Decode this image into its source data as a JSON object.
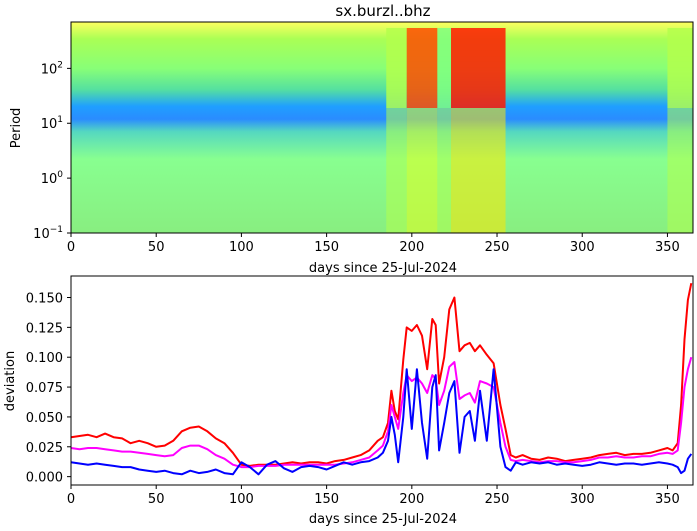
{
  "chart_data": [
    {
      "type": "heatmap",
      "title": "sx.burzl..bhz",
      "xlabel": "days since 25-Jul-2024",
      "ylabel": "Period",
      "xlim": [
        0,
        365
      ],
      "ylim": [
        0.1,
        700
      ],
      "yscale": "log",
      "colormap": "jet",
      "x_ticks": [
        "0",
        "50",
        "100",
        "150",
        "200",
        "250",
        "300",
        "350"
      ],
      "y_ticks": [
        "10^-1",
        "10^0",
        "10^1",
        "10^2"
      ],
      "bands": [
        {
          "x0": 0,
          "x1": 185,
          "value": 0.35
        },
        {
          "x0": 185,
          "x1": 197,
          "value": 0.55
        },
        {
          "x0": 197,
          "x1": 215,
          "value": 0.8
        },
        {
          "x0": 215,
          "x1": 223,
          "value": 0.5
        },
        {
          "x0": 223,
          "x1": 255,
          "value": 0.85
        },
        {
          "x0": 255,
          "x1": 350,
          "value": 0.35
        },
        {
          "x0": 350,
          "x1": 365,
          "value": 0.55
        }
      ]
    },
    {
      "type": "line",
      "xlabel": "days since 25-Jul-2024",
      "ylabel": "deviation",
      "xlim": [
        0,
        365
      ],
      "ylim": [
        -0.007,
        0.168
      ],
      "x_ticks": [
        "0",
        "50",
        "100",
        "150",
        "200",
        "250",
        "300",
        "350"
      ],
      "y_ticks": [
        "0.000",
        "0.025",
        "0.050",
        "0.075",
        "0.100",
        "0.125",
        "0.150"
      ],
      "series": [
        {
          "color": "#ff0000",
          "x": [
            0,
            5,
            10,
            15,
            20,
            25,
            30,
            35,
            40,
            45,
            50,
            55,
            60,
            65,
            70,
            75,
            80,
            85,
            90,
            95,
            100,
            105,
            110,
            115,
            120,
            125,
            130,
            135,
            140,
            145,
            150,
            155,
            160,
            165,
            170,
            175,
            180,
            183,
            186,
            188,
            190,
            192,
            195,
            197,
            200,
            203,
            206,
            209,
            212,
            214,
            216,
            219,
            222,
            225,
            228,
            231,
            234,
            237,
            240,
            244,
            248,
            252,
            255,
            258,
            261,
            265,
            270,
            275,
            280,
            285,
            290,
            295,
            300,
            305,
            310,
            315,
            320,
            325,
            330,
            335,
            340,
            345,
            350,
            353,
            356,
            358,
            360,
            362,
            364
          ],
          "values": [
            0.033,
            0.034,
            0.035,
            0.033,
            0.036,
            0.033,
            0.032,
            0.028,
            0.03,
            0.028,
            0.025,
            0.026,
            0.03,
            0.038,
            0.041,
            0.042,
            0.038,
            0.032,
            0.028,
            0.02,
            0.01,
            0.009,
            0.01,
            0.01,
            0.01,
            0.011,
            0.012,
            0.011,
            0.012,
            0.012,
            0.011,
            0.013,
            0.014,
            0.016,
            0.018,
            0.022,
            0.03,
            0.033,
            0.045,
            0.072,
            0.055,
            0.048,
            0.098,
            0.125,
            0.122,
            0.127,
            0.118,
            0.09,
            0.132,
            0.127,
            0.078,
            0.1,
            0.14,
            0.15,
            0.105,
            0.11,
            0.112,
            0.105,
            0.11,
            0.102,
            0.095,
            0.06,
            0.04,
            0.018,
            0.016,
            0.018,
            0.015,
            0.014,
            0.016,
            0.015,
            0.013,
            0.014,
            0.015,
            0.016,
            0.018,
            0.019,
            0.02,
            0.018,
            0.019,
            0.019,
            0.02,
            0.022,
            0.024,
            0.022,
            0.028,
            0.06,
            0.115,
            0.148,
            0.162
          ]
        },
        {
          "color": "#ff00ff",
          "x": [
            0,
            5,
            10,
            15,
            20,
            25,
            30,
            35,
            40,
            45,
            50,
            55,
            60,
            65,
            70,
            75,
            80,
            85,
            90,
            95,
            100,
            105,
            110,
            115,
            120,
            125,
            130,
            135,
            140,
            145,
            150,
            155,
            160,
            165,
            170,
            175,
            180,
            183,
            186,
            188,
            190,
            192,
            195,
            197,
            200,
            203,
            206,
            209,
            212,
            214,
            216,
            219,
            222,
            225,
            228,
            231,
            234,
            237,
            240,
            244,
            248,
            252,
            255,
            258,
            261,
            265,
            270,
            275,
            280,
            285,
            290,
            295,
            300,
            305,
            310,
            315,
            320,
            325,
            330,
            335,
            340,
            345,
            350,
            353,
            356,
            358,
            360,
            362,
            364
          ],
          "values": [
            0.024,
            0.023,
            0.024,
            0.024,
            0.023,
            0.022,
            0.021,
            0.021,
            0.02,
            0.019,
            0.018,
            0.017,
            0.018,
            0.024,
            0.026,
            0.026,
            0.023,
            0.018,
            0.015,
            0.01,
            0.008,
            0.008,
            0.009,
            0.009,
            0.009,
            0.01,
            0.01,
            0.01,
            0.01,
            0.01,
            0.01,
            0.01,
            0.011,
            0.012,
            0.014,
            0.016,
            0.022,
            0.026,
            0.038,
            0.06,
            0.05,
            0.04,
            0.07,
            0.085,
            0.08,
            0.083,
            0.078,
            0.07,
            0.085,
            0.082,
            0.06,
            0.072,
            0.092,
            0.096,
            0.065,
            0.068,
            0.07,
            0.062,
            0.08,
            0.078,
            0.075,
            0.045,
            0.025,
            0.014,
            0.013,
            0.014,
            0.013,
            0.012,
            0.013,
            0.013,
            0.012,
            0.012,
            0.013,
            0.014,
            0.016,
            0.016,
            0.017,
            0.016,
            0.016,
            0.017,
            0.017,
            0.019,
            0.02,
            0.019,
            0.022,
            0.045,
            0.075,
            0.09,
            0.1
          ]
        },
        {
          "color": "#0000ff",
          "x": [
            0,
            5,
            10,
            15,
            20,
            25,
            30,
            35,
            40,
            45,
            50,
            55,
            60,
            65,
            70,
            75,
            80,
            85,
            90,
            95,
            100,
            105,
            110,
            115,
            120,
            125,
            130,
            135,
            140,
            145,
            150,
            155,
            160,
            165,
            170,
            175,
            180,
            183,
            186,
            188,
            190,
            192,
            195,
            197,
            200,
            203,
            206,
            209,
            212,
            214,
            216,
            219,
            222,
            225,
            228,
            231,
            234,
            237,
            240,
            244,
            248,
            252,
            255,
            258,
            261,
            265,
            270,
            275,
            280,
            285,
            290,
            295,
            300,
            305,
            310,
            315,
            320,
            325,
            330,
            335,
            340,
            345,
            350,
            353,
            356,
            358,
            360,
            362,
            364
          ],
          "values": [
            0.012,
            0.011,
            0.01,
            0.011,
            0.01,
            0.009,
            0.008,
            0.008,
            0.006,
            0.005,
            0.004,
            0.005,
            0.003,
            0.002,
            0.005,
            0.003,
            0.004,
            0.006,
            0.003,
            0.002,
            0.012,
            0.008,
            0.002,
            0.01,
            0.013,
            0.007,
            0.004,
            0.008,
            0.009,
            0.008,
            0.006,
            0.009,
            0.012,
            0.01,
            0.012,
            0.013,
            0.016,
            0.02,
            0.03,
            0.05,
            0.035,
            0.012,
            0.05,
            0.09,
            0.04,
            0.09,
            0.045,
            0.015,
            0.075,
            0.085,
            0.022,
            0.045,
            0.07,
            0.08,
            0.02,
            0.05,
            0.055,
            0.03,
            0.072,
            0.03,
            0.09,
            0.025,
            0.008,
            0.005,
            0.012,
            0.01,
            0.012,
            0.011,
            0.012,
            0.01,
            0.011,
            0.01,
            0.009,
            0.01,
            0.012,
            0.011,
            0.01,
            0.011,
            0.011,
            0.01,
            0.011,
            0.012,
            0.011,
            0.01,
            0.008,
            0.003,
            0.005,
            0.015,
            0.019
          ]
        }
      ]
    }
  ]
}
